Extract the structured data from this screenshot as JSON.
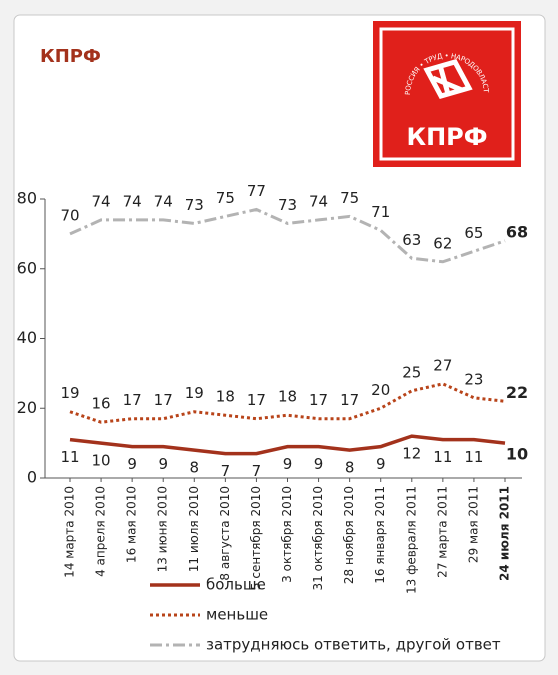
{
  "chart_data": {
    "type": "line",
    "title": "КПРФ",
    "logo_text": "КПРФ",
    "logo_motto": "РОССИЯ • ТРУД • НАРОДОВЛАСТИЕ • СОЦИАЛИЗМ",
    "categories": [
      "14 марта 2010",
      "4 апреля 2010",
      "16 мая 2010",
      "13 июня 2010",
      "11 июля 2010",
      "8 августа 2010",
      "5 сентября 2010",
      "3 октября 2010",
      "31 октября 2010",
      "28 ноября 2010",
      "16 января 2011",
      "13 февраля 2011",
      "27 марта 2011",
      "29 мая 2011",
      "24 июля 2011"
    ],
    "series": [
      {
        "name": "больше",
        "color": "#a3321c",
        "style": "solid",
        "values": [
          11,
          10,
          9,
          9,
          8,
          7,
          7,
          9,
          9,
          8,
          9,
          12,
          11,
          11,
          10
        ]
      },
      {
        "name": "меньше",
        "color": "#b8441a",
        "style": "dotted",
        "values": [
          19,
          16,
          17,
          17,
          19,
          18,
          17,
          18,
          17,
          17,
          20,
          25,
          27,
          23,
          22
        ]
      },
      {
        "name": "затрудняюсь ответить, другой ответ",
        "color": "#b3b3b3",
        "style": "dashdot",
        "values": [
          70,
          74,
          74,
          74,
          73,
          75,
          77,
          73,
          74,
          75,
          71,
          63,
          62,
          65,
          68
        ]
      }
    ],
    "ylim": [
      0,
      80
    ],
    "yticks": [
      0,
      20,
      40,
      60,
      80
    ]
  }
}
